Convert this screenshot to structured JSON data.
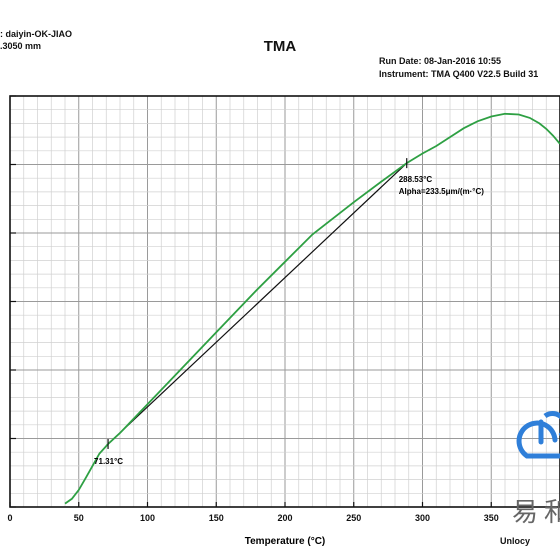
{
  "header": {
    "sample": ": daiyin-OK-JIAO",
    "size": ".3050 mm",
    "title": "TMA",
    "run_date": "Run Date: 08-Jan-2016 10:55",
    "instrument": "Instrument: TMA Q400 V22.5 Build 31"
  },
  "colors": {
    "curve": "#2ea043",
    "tangent": "#111111",
    "grid": "#d0d0d0",
    "watermark_blue": "#2f7fd9"
  },
  "watermark": {
    "icon": "cloud-power-icon",
    "glyph": "易和",
    "subtext": "Unlocy"
  },
  "chart_data": {
    "type": "line",
    "title": "TMA",
    "xlabel": "Temperature (°C)",
    "ylabel": "",
    "xlim": [
      0,
      400
    ],
    "ylim": [
      0,
      6
    ],
    "x_ticks": [
      0,
      50,
      100,
      150,
      200,
      250,
      300,
      350
    ],
    "grid": true,
    "series": [
      {
        "x": [
          40,
          45,
          50,
          55,
          60,
          65,
          71.31,
          80,
          100,
          120,
          150,
          180,
          200,
          220,
          250,
          270,
          288.53,
          300,
          310,
          320,
          330,
          340,
          350,
          360,
          370,
          378,
          385,
          390,
          395,
          400
        ],
        "y": [
          0.05,
          0.12,
          0.25,
          0.42,
          0.6,
          0.78,
          0.92,
          1.08,
          1.5,
          1.92,
          2.55,
          3.18,
          3.58,
          3.98,
          4.45,
          4.75,
          5.02,
          5.16,
          5.27,
          5.4,
          5.53,
          5.63,
          5.7,
          5.74,
          5.73,
          5.68,
          5.6,
          5.52,
          5.42,
          5.3
        ]
      }
    ],
    "annotations": [
      {
        "x": 71.31,
        "y": 0.92,
        "text": "71.31°C"
      },
      {
        "x": 288.53,
        "y": 5.02,
        "text": "288.53°C"
      },
      {
        "text": "Alpha=233.5μm/(m·°C)"
      }
    ],
    "tangent": {
      "x": [
        71.31,
        288.53
      ],
      "y": [
        0.92,
        5.02
      ]
    }
  }
}
